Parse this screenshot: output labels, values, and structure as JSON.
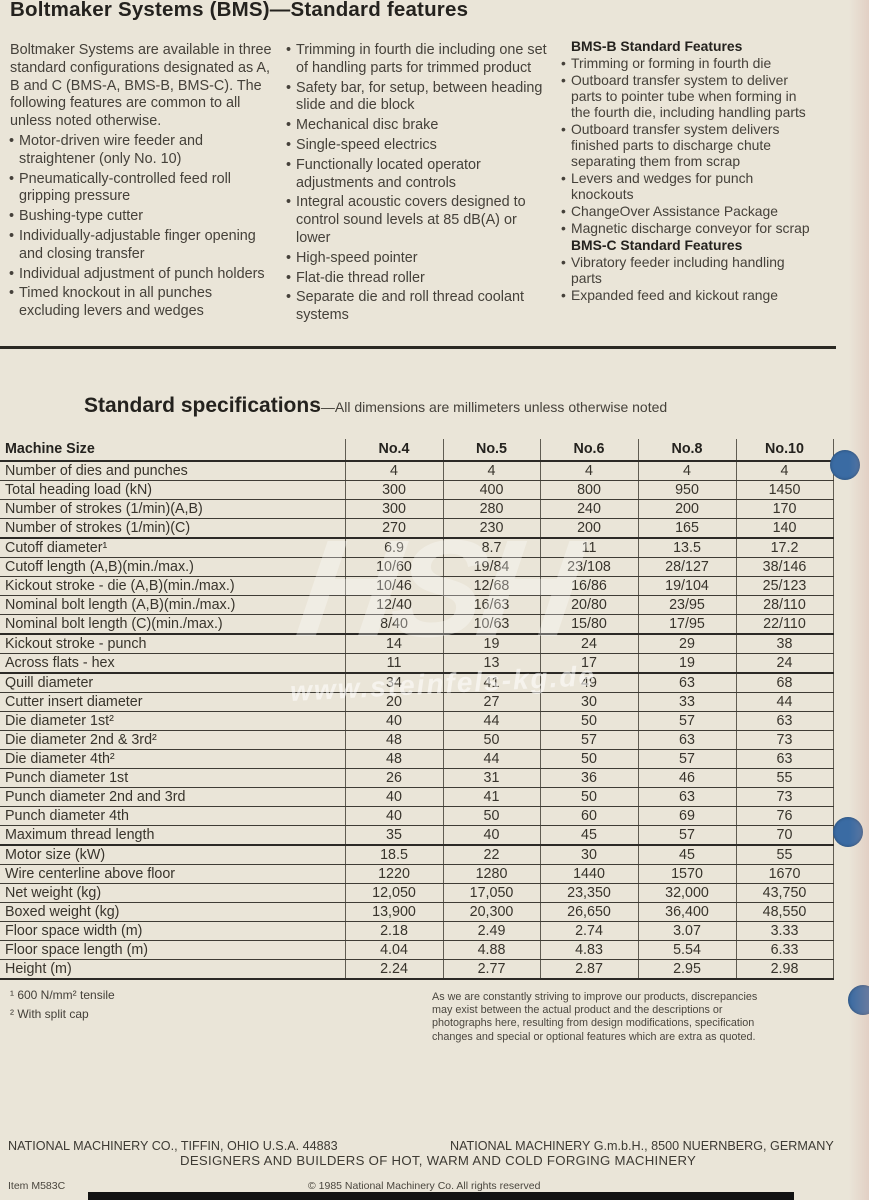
{
  "page": {
    "title": "Boltmaker Systems (BMS)—Standard features"
  },
  "features": {
    "intro": "Boltmaker Systems are available in three standard configurations designated as A, B and C (BMS-A, BMS-B, BMS-C). The following features are common to all unless noted otherwise.",
    "column1": [
      "Motor-driven wire feeder and straightener (only No. 10)",
      "Pneumatically-controlled feed roll gripping pressure",
      "Bushing-type cutter",
      "Individually-adjustable finger opening and closing transfer",
      "Individual adjustment of punch holders",
      "Timed knockout in all punches excluding levers and wedges"
    ],
    "column2": [
      "Trimming in fourth die including one set of handling parts for trimmed product",
      "Safety bar, for setup, between heading slide and die block",
      "Mechanical disc brake",
      "Single-speed electrics",
      "Functionally located operator adjustments and controls",
      "Integral acoustic covers designed to control sound levels at 85 dB(A) or lower",
      "High-speed pointer",
      "Flat-die thread roller",
      "Separate die and roll thread coolant systems"
    ],
    "column3": {
      "heading_b": "BMS-B Standard Features",
      "items_b": [
        "Trimming or forming in fourth die",
        "Outboard transfer system to deliver parts to pointer tube when forming in the fourth die, including handling parts",
        "Outboard transfer system delivers finished parts to discharge chute separating them from scrap",
        "Levers and wedges for punch knockouts",
        "ChangeOver Assistance Package",
        "Magnetic discharge conveyor for scrap"
      ],
      "heading_c": "BMS-C Standard Features",
      "items_c": [
        "Vibratory feeder including handling parts",
        "Expanded feed and kickout range"
      ]
    }
  },
  "specs": {
    "heading": "Standard specifications",
    "subheading": "—All dimensions are millimeters unless otherwise noted",
    "table": {
      "label_header": "Machine Size",
      "columns": [
        "No.4",
        "No.5",
        "No.6",
        "No.8",
        "No.10"
      ],
      "rows": [
        {
          "label": "Number of dies and punches",
          "values": [
            "4",
            "4",
            "4",
            "4",
            "4"
          ]
        },
        {
          "label": "Total heading load (kN)",
          "values": [
            "300",
            "400",
            "800",
            "950",
            "1450"
          ]
        },
        {
          "label": "Number of strokes (1/min)(A,B)",
          "values": [
            "300",
            "280",
            "240",
            "200",
            "170"
          ]
        },
        {
          "label": "Number of strokes (1/min)(C)",
          "values": [
            "270",
            "230",
            "200",
            "165",
            "140"
          ]
        },
        {
          "label": "Cutoff diameter¹",
          "values": [
            "6.9",
            "8.7",
            "11",
            "13.5",
            "17.2"
          ]
        },
        {
          "label": "Cutoff length (A,B)(min./max.)",
          "values": [
            "10/60",
            "19/84",
            "23/108",
            "28/127",
            "38/146"
          ]
        },
        {
          "label": "Kickout stroke - die (A,B)(min./max.)",
          "values": [
            "10/46",
            "12/68",
            "16/86",
            "19/104",
            "25/123"
          ]
        },
        {
          "label": "Nominal bolt length (A,B)(min./max.)",
          "values": [
            "12/40",
            "16/63",
            "20/80",
            "23/95",
            "28/110"
          ]
        },
        {
          "label": "Nominal bolt length (C)(min./max.)",
          "values": [
            "8/40",
            "10/63",
            "15/80",
            "17/95",
            "22/110"
          ]
        },
        {
          "label": "Kickout stroke - punch",
          "values": [
            "14",
            "19",
            "24",
            "29",
            "38"
          ]
        },
        {
          "label": "Across flats - hex",
          "values": [
            "11",
            "13",
            "17",
            "19",
            "24"
          ]
        },
        {
          "label": "Quill diameter",
          "values": [
            "34",
            "41",
            "49",
            "63",
            "68"
          ]
        },
        {
          "label": "Cutter insert diameter",
          "values": [
            "20",
            "27",
            "30",
            "33",
            "44"
          ]
        },
        {
          "label": "Die diameter 1st²",
          "values": [
            "40",
            "44",
            "50",
            "57",
            "63"
          ]
        },
        {
          "label": "Die diameter 2nd & 3rd²",
          "values": [
            "48",
            "50",
            "57",
            "63",
            "73"
          ]
        },
        {
          "label": "Die diameter 4th²",
          "values": [
            "48",
            "44",
            "50",
            "57",
            "63"
          ]
        },
        {
          "label": "Punch diameter 1st",
          "values": [
            "26",
            "31",
            "36",
            "46",
            "55"
          ]
        },
        {
          "label": "Punch diameter 2nd and 3rd",
          "values": [
            "40",
            "41",
            "50",
            "63",
            "73"
          ]
        },
        {
          "label": "Punch diameter 4th",
          "values": [
            "40",
            "50",
            "60",
            "69",
            "76"
          ]
        },
        {
          "label": "Maximum thread length",
          "values": [
            "35",
            "40",
            "45",
            "57",
            "70"
          ]
        },
        {
          "label": "Motor size (kW)",
          "values": [
            "18.5",
            "22",
            "30",
            "45",
            "55"
          ]
        },
        {
          "label": "Wire centerline above floor",
          "values": [
            "1220",
            "1280",
            "1440",
            "1570",
            "1670"
          ]
        },
        {
          "label": "Net weight (kg)",
          "values": [
            "12,050",
            "17,050",
            "23,350",
            "32,000",
            "43,750"
          ]
        },
        {
          "label": "Boxed weight (kg)",
          "values": [
            "13,900",
            "20,300",
            "26,650",
            "36,400",
            "48,550"
          ]
        },
        {
          "label": "Floor space width (m)",
          "values": [
            "2.18",
            "2.49",
            "2.74",
            "3.07",
            "3.33"
          ]
        },
        {
          "label": "Floor space length (m)",
          "values": [
            "4.04",
            "4.88",
            "4.83",
            "5.54",
            "6.33"
          ]
        },
        {
          "label": "Height (m)",
          "values": [
            "2.24",
            "2.77",
            "2.87",
            "2.95",
            "2.98"
          ]
        }
      ]
    },
    "footnotes": [
      "¹ 600 N/mm² tensile",
      "² With split cap"
    ]
  },
  "disclaimer": "As we are constantly striving to improve our products, discrepancies may exist between the actual product and the descriptions or photographs here, resulting from design modifications, specification changes and special or optional features which are extra as quoted.",
  "footer": {
    "left": "NATIONAL MACHINERY CO., TIFFIN, OHIO U.S.A. 44883",
    "right": "NATIONAL MACHINERY G.m.b.H., 8500 NUERNBERG, GERMANY",
    "tagline": "DESIGNERS AND BUILDERS OF HOT, WARM AND COLD FORGING MACHINERY",
    "item_code": "Item M583C",
    "copyright": "© 1985 National Machinery Co. All rights reserved"
  },
  "watermark": {
    "logo": "HSH",
    "text": "www.steinfels-kg.de"
  },
  "colors": {
    "paper": "#eae5d8",
    "ink": "#45413a",
    "line": "#3f3c35",
    "hole": "#3a6ba3",
    "scan_bar": "#121212"
  }
}
